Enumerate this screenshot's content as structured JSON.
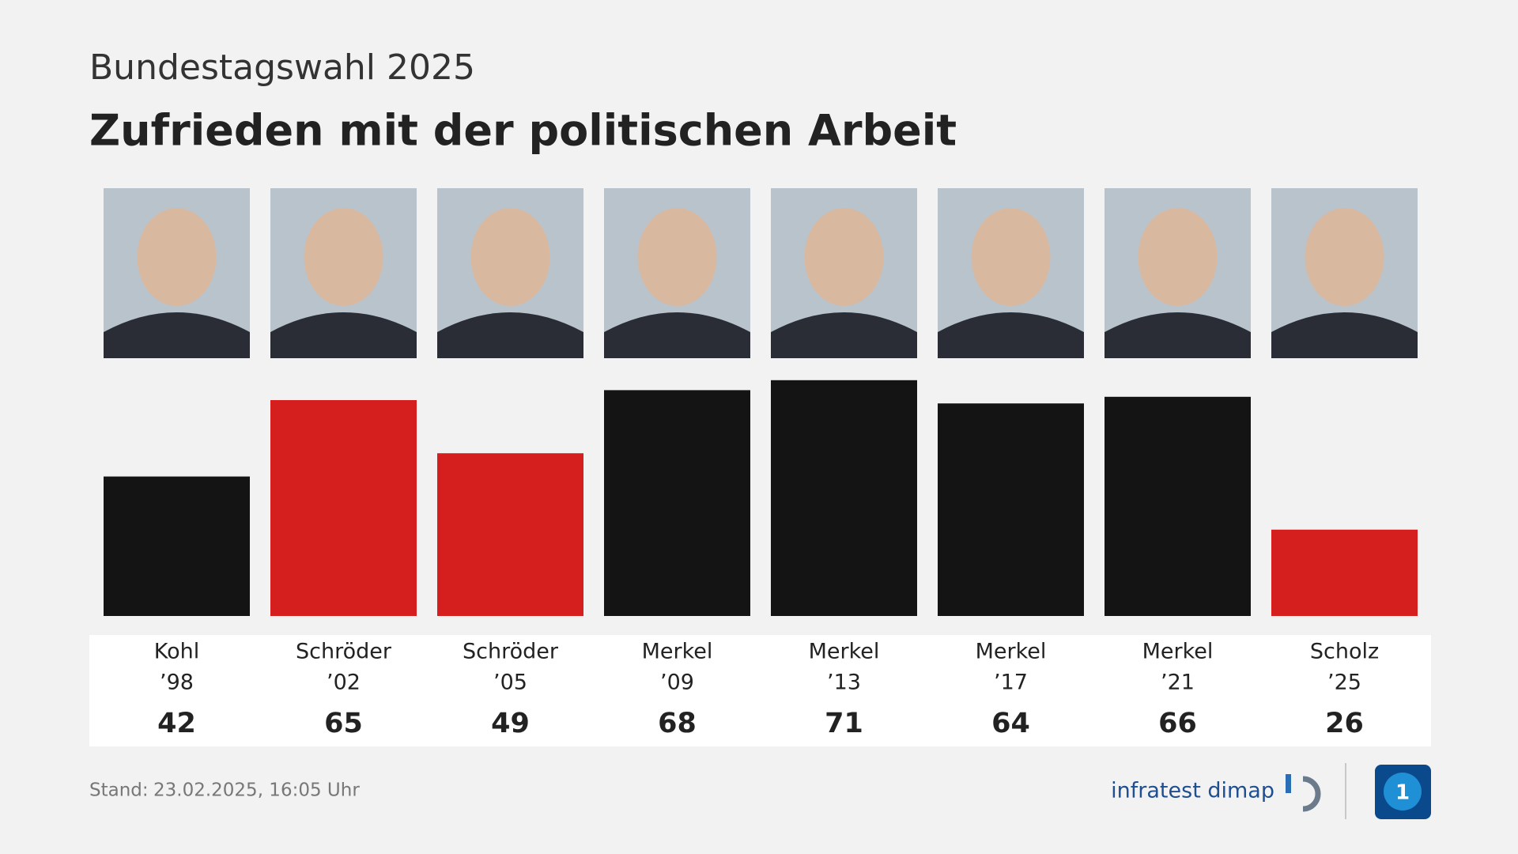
{
  "chart_data": {
    "type": "bar",
    "supertitle": "Bundestagswahl 2025",
    "title": "Zufrieden mit der politischen Arbeit",
    "categories": [
      "Kohl",
      "Schröder",
      "Schröder",
      "Merkel",
      "Merkel",
      "Merkel",
      "Merkel",
      "Scholz"
    ],
    "category_years": [
      "’98",
      "’02",
      "’05",
      "’09",
      "’13",
      "’17",
      "’21",
      "’25"
    ],
    "values": [
      42,
      65,
      49,
      68,
      71,
      64,
      66,
      26
    ],
    "colors": [
      "#141414",
      "#d51e1e",
      "#d51e1e",
      "#141414",
      "#141414",
      "#141414",
      "#141414",
      "#d51e1e"
    ],
    "ylim": [
      0,
      100
    ]
  },
  "footer": {
    "stand_label": "Stand:",
    "stand_date": "23.02.2025, 16:05 Uhr",
    "source": "infratest dimap"
  }
}
